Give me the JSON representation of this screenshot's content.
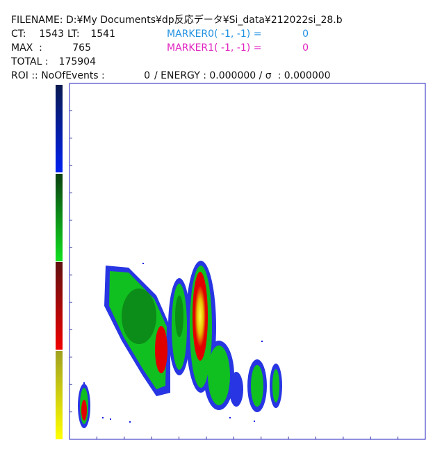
{
  "header": {
    "filename": "FILENAME: D:¥My Documents¥dp反応データ¥Si_data¥212022si_28.b",
    "ct_label": "CT:",
    "ct": 1543,
    "lt_label": "LT:",
    "lt": 1541,
    "marker0_label": "MARKER0( -1, -1) =",
    "marker0": 0,
    "max_label": "MAX  :",
    "max": 765,
    "marker1_label": "MARKER1( -1, -1) =",
    "marker1": 0,
    "total_label": "TOTAL :",
    "total": 175904,
    "roi_label": "ROI :: NoOfEvents :",
    "roi_events": 0,
    "roi_rest": "/ ENERGY : 0.000000 / σ  : 0.000000"
  }
}
